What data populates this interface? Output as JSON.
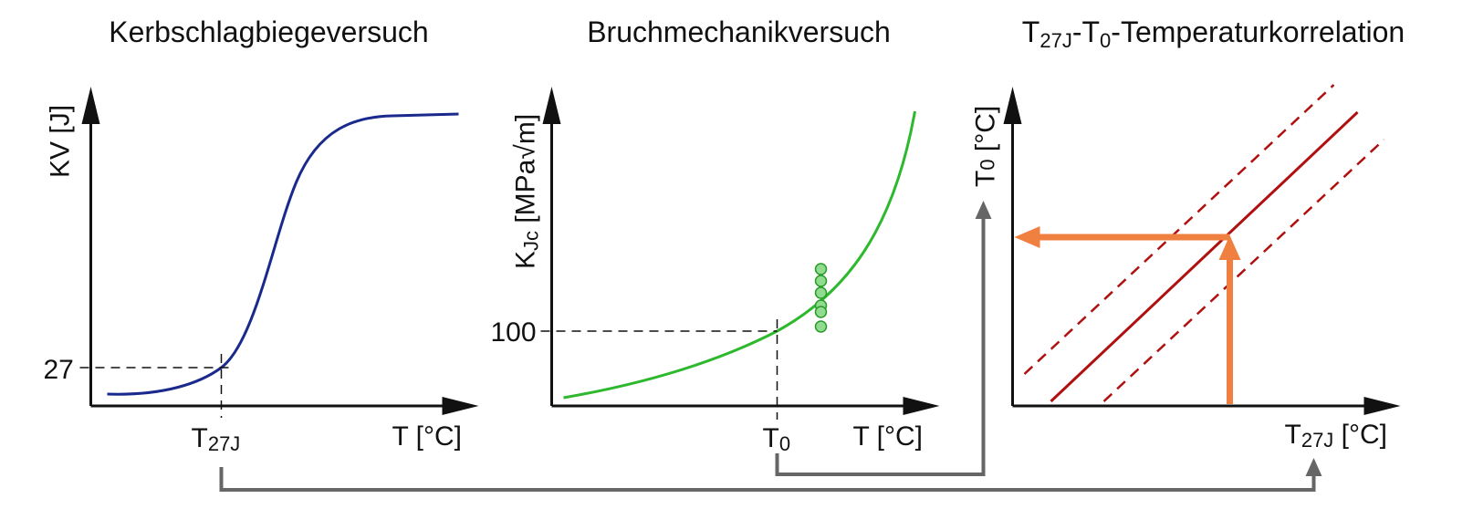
{
  "panels": [
    {
      "title": "Kerbschlagbiegeversuch",
      "y_axis": "KV [J]",
      "x_axis": "T [°C]",
      "y_marker": "27",
      "x_marker": [
        "T",
        "27J"
      ]
    },
    {
      "title": "Bruchmechanikversuch",
      "y_axis": [
        "K",
        "Jc",
        " [MPa√m]"
      ],
      "x_axis": "T [°C]",
      "y_marker": "100",
      "x_marker": [
        "T",
        "0"
      ]
    },
    {
      "title": [
        "T",
        "27J",
        "-T",
        "0",
        "-Temperaturkorrelation"
      ],
      "y_axis": [
        "T",
        "0",
        " [°C]"
      ],
      "x_axis": [
        "T",
        "27J",
        " [°C]"
      ]
    }
  ]
}
